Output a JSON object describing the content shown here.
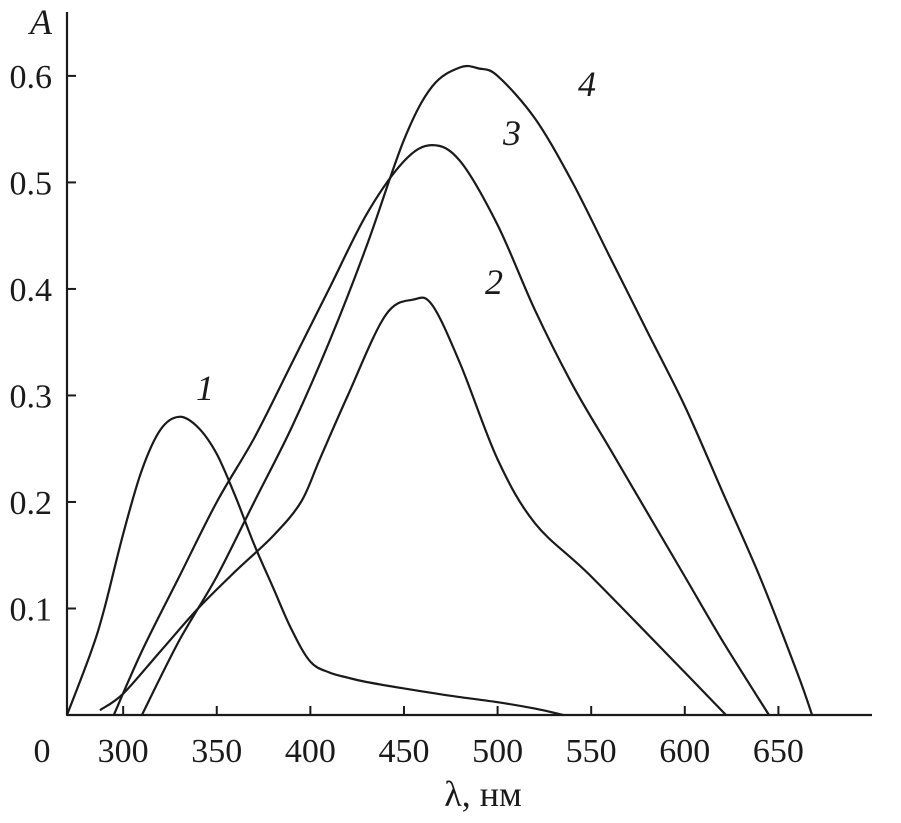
{
  "chart_data": {
    "type": "line",
    "xlabel": "λ, нм",
    "ylabel": "A",
    "xlim": [
      270,
      700
    ],
    "ylim": [
      0,
      0.66
    ],
    "x_origin_label": "0",
    "x_ticks": [
      300,
      350,
      400,
      450,
      500,
      550,
      600,
      650
    ],
    "y_ticks": [
      0.1,
      0.2,
      0.3,
      0.4,
      0.5,
      0.6
    ],
    "grid": false,
    "series": [
      {
        "name": "1",
        "x": [
          270,
          283,
          290,
          300,
          310,
          320,
          330,
          340,
          350,
          360,
          370,
          380,
          390,
          400,
          410,
          420,
          430,
          450,
          475,
          500,
          520,
          535
        ],
        "y": [
          0.0,
          0.06,
          0.1,
          0.17,
          0.23,
          0.268,
          0.28,
          0.27,
          0.245,
          0.205,
          0.16,
          0.12,
          0.08,
          0.05,
          0.04,
          0.035,
          0.031,
          0.025,
          0.018,
          0.012,
          0.006,
          0.0
        ]
      },
      {
        "name": "2",
        "x": [
          288,
          300,
          320,
          340,
          360,
          380,
          395,
          405,
          420,
          440,
          455,
          465,
          480,
          500,
          520,
          550,
          600,
          622
        ],
        "y": [
          0.005,
          0.02,
          0.06,
          0.1,
          0.135,
          0.168,
          0.2,
          0.24,
          0.3,
          0.375,
          0.39,
          0.385,
          0.33,
          0.24,
          0.18,
          0.13,
          0.04,
          0.0
        ]
      },
      {
        "name": "3",
        "x": [
          295,
          310,
          330,
          350,
          370,
          390,
          410,
          430,
          450,
          465,
          480,
          500,
          520,
          540,
          560,
          580,
          600,
          620,
          645
        ],
        "y": [
          0.0,
          0.06,
          0.13,
          0.2,
          0.26,
          0.33,
          0.4,
          0.47,
          0.52,
          0.535,
          0.52,
          0.46,
          0.38,
          0.31,
          0.25,
          0.19,
          0.13,
          0.07,
          0.0
        ]
      },
      {
        "name": "4",
        "x": [
          310,
          330,
          350,
          370,
          390,
          410,
          430,
          450,
          465,
          480,
          490,
          500,
          520,
          540,
          560,
          580,
          600,
          620,
          640,
          660,
          668
        ],
        "y": [
          0.0,
          0.07,
          0.13,
          0.2,
          0.27,
          0.35,
          0.44,
          0.54,
          0.59,
          0.608,
          0.607,
          0.6,
          0.56,
          0.5,
          0.43,
          0.36,
          0.29,
          0.21,
          0.13,
          0.04,
          0.0
        ]
      }
    ]
  }
}
